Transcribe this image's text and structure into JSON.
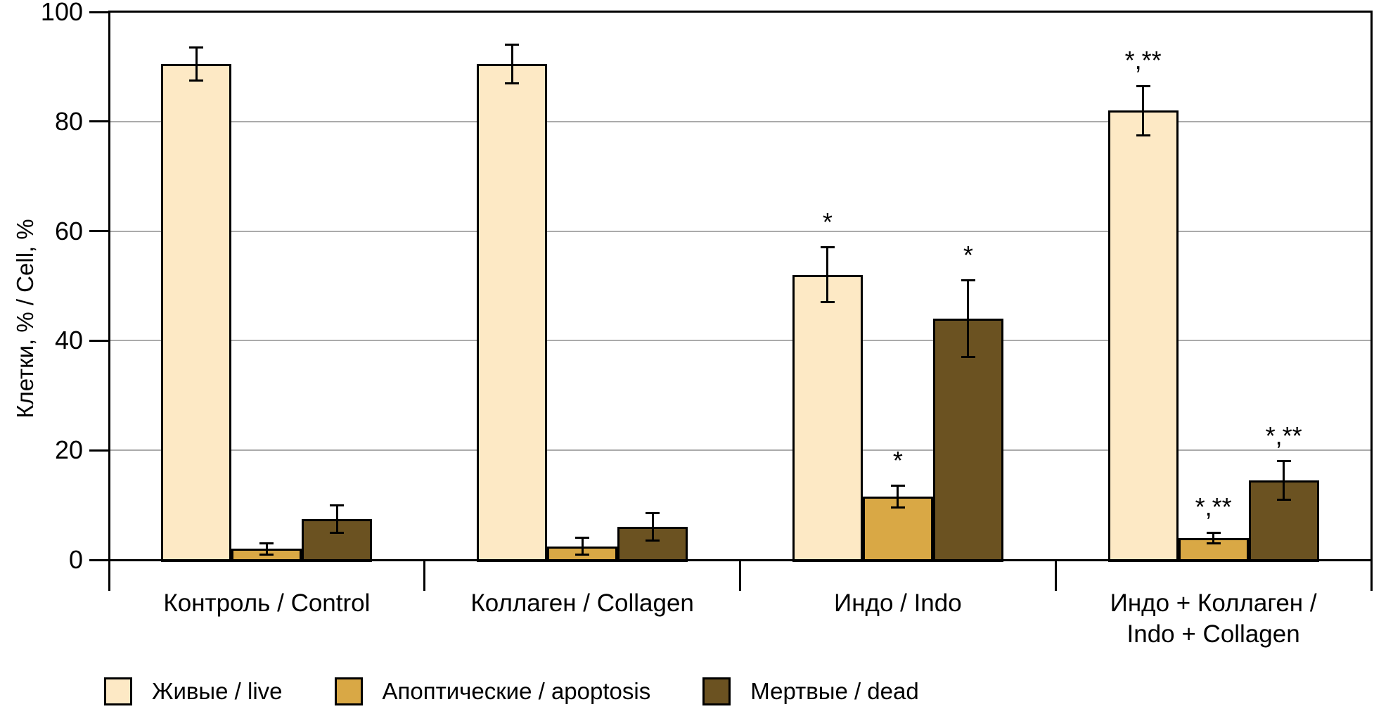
{
  "chart_data": {
    "type": "bar",
    "title": "",
    "xlabel": "",
    "ylabel": "Клетки, % / Cell, %",
    "ylim": [
      0,
      100
    ],
    "yticks": [
      0,
      20,
      40,
      60,
      80,
      100
    ],
    "grid": true,
    "legend_position": "bottom",
    "error_bars": true,
    "categories": [
      "Контроль / Control",
      "Коллаген / Collagen",
      "Индо / Indo",
      "Индо + Коллаген /\nIndo + Collagen"
    ],
    "series": [
      {
        "name": "Живые / live",
        "key": "live",
        "color": "#FDE9C5",
        "values": [
          90.5,
          90.5,
          52,
          82
        ],
        "errors": [
          3,
          3.5,
          5,
          4.5
        ],
        "markers": [
          "",
          "",
          "*",
          "*,**"
        ]
      },
      {
        "name": "Апоптические / apoptosis",
        "key": "apoptosis",
        "color": "#D9A845",
        "values": [
          2,
          2.5,
          11.5,
          4
        ],
        "errors": [
          1,
          1.5,
          2,
          1
        ],
        "markers": [
          "",
          "",
          "*",
          "*,**"
        ]
      },
      {
        "name": "Мертвые / dead",
        "key": "dead",
        "color": "#6B5221",
        "values": [
          7.5,
          6,
          44,
          14.5
        ],
        "errors": [
          2.5,
          2.5,
          7,
          3.5
        ],
        "markers": [
          "",
          "",
          "*",
          "*,**"
        ]
      }
    ],
    "style_colors": {
      "axis": "#000000",
      "grid": "#ABABAB",
      "bar_border": "#000000",
      "error_bar": "#000000",
      "background": "#FFFFFF"
    }
  }
}
